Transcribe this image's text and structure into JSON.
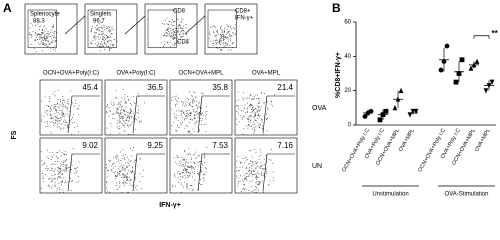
{
  "panel_a": {
    "label": "A",
    "gating": [
      {
        "title": "Splenocyte",
        "value": "88.3"
      },
      {
        "title": "Singlets",
        "value": "96.7"
      },
      {
        "title": "CD8",
        "value": "CD4"
      },
      {
        "title": "CD8+",
        "value": "IFN-γ+"
      }
    ],
    "columns": [
      "OCN+OVA+Poly(I:C)",
      "OVA+Poly(I:C)",
      "OCN+OVA+MPL",
      "OVA+MPL"
    ],
    "rows": [
      {
        "label": "OVA",
        "values": [
          "45.4",
          "36.5",
          "35.8",
          "21.4"
        ]
      },
      {
        "label": "UN",
        "values": [
          "9.02",
          "9.25",
          "7.53",
          "7.16"
        ]
      }
    ],
    "y_label": "FS",
    "x_label": "IFN-γ+"
  },
  "chart_data": {
    "type": "dot",
    "label": "B",
    "y_label": "%CD8+IFN-γ+",
    "categories": [
      "OCN+OVA+Poly I:C",
      "OVA+Poly I:C",
      "OCN+OVA+MPL",
      "OVA+MPL",
      "OCN+OVA+Poly I:C",
      "OVA+Poly I:C",
      "OCN+OVA+MPL",
      "OVA+MPL"
    ],
    "markers": [
      "circle",
      "square",
      "triangle",
      "triangle-down",
      "circle",
      "square",
      "triangle",
      "triangle-down"
    ],
    "points": [
      [
        5,
        7,
        8
      ],
      [
        3,
        6,
        8
      ],
      [
        10,
        15,
        20
      ],
      [
        6,
        8,
        8
      ],
      [
        32,
        37,
        46
      ],
      [
        25,
        30,
        38
      ],
      [
        33,
        35,
        37
      ],
      [
        20,
        23,
        25
      ]
    ],
    "means": [
      7,
      6,
      15,
      7,
      38,
      31,
      35,
      23
    ],
    "errors": [
      2,
      3,
      5,
      1,
      7,
      6,
      2,
      3
    ],
    "groups": [
      "Unstimulation",
      "OVA-Stimulation"
    ],
    "annotation": "**",
    "color": "#000000",
    "ylim": [
      0,
      60
    ],
    "yticks": [
      0,
      20,
      40,
      60
    ]
  }
}
